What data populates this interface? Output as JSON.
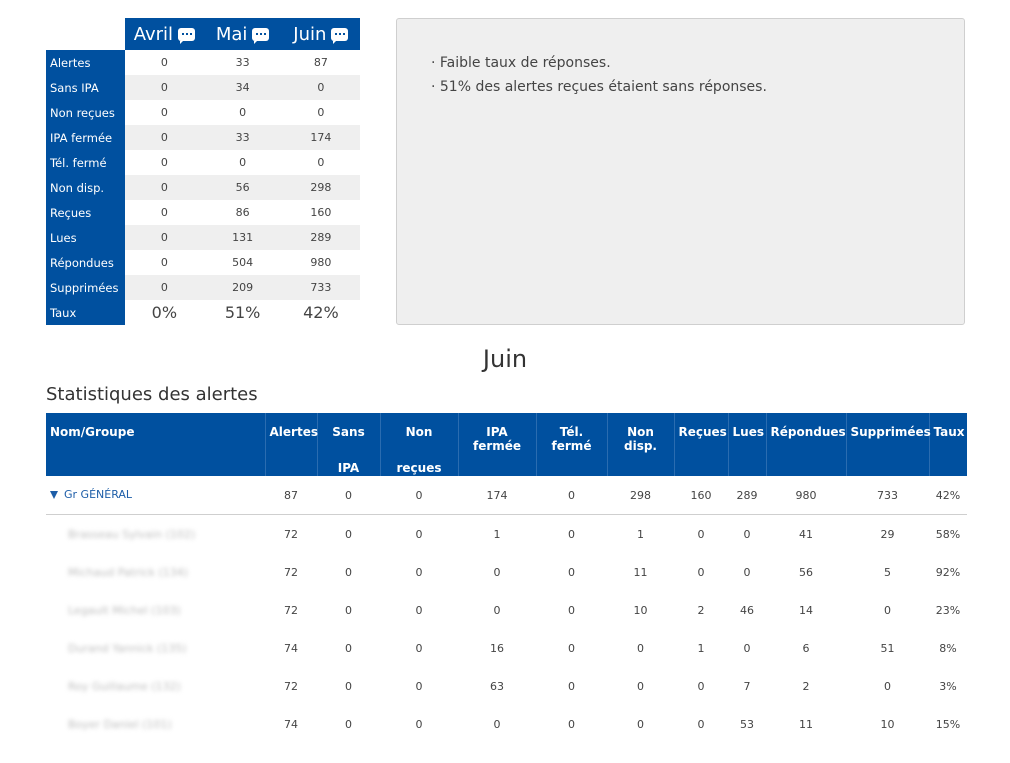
{
  "summary": {
    "months": [
      "Avril",
      "Mai",
      "Juin"
    ],
    "rows": [
      {
        "label": "Alertes",
        "values": [
          "0",
          "33",
          "87"
        ]
      },
      {
        "label": "Sans IPA",
        "values": [
          "0",
          "34",
          "0"
        ]
      },
      {
        "label": "Non reçues",
        "values": [
          "0",
          "0",
          "0"
        ]
      },
      {
        "label": "IPA fermée",
        "values": [
          "0",
          "33",
          "174"
        ]
      },
      {
        "label": "Tél. fermé",
        "values": [
          "0",
          "0",
          "0"
        ]
      },
      {
        "label": "Non disp.",
        "values": [
          "0",
          "56",
          "298"
        ]
      },
      {
        "label": "Reçues",
        "values": [
          "0",
          "86",
          "160"
        ]
      },
      {
        "label": "Lues",
        "values": [
          "0",
          "131",
          "289"
        ]
      },
      {
        "label": "Répondues",
        "values": [
          "0",
          "504",
          "980"
        ]
      },
      {
        "label": "Supprimées",
        "values": [
          "0",
          "209",
          "733"
        ]
      },
      {
        "label": "Taux",
        "values": [
          "0%",
          "51%",
          "42%"
        ]
      }
    ]
  },
  "comments": [
    "· Faible taux de réponses.",
    "· 51% des alertes reçues étaient sans réponses."
  ],
  "month_title": "Juin",
  "section_title": "Statistiques des alertes",
  "stats": {
    "headers": [
      "Nom/Groupe",
      "Alertes",
      "Sans IPA",
      "Non reçues",
      "IPA fermée",
      "Tél. fermé",
      "Non disp.",
      "Reçues",
      "Lues",
      "Répondues",
      "Supprimées",
      "Taux"
    ],
    "header_lines": {
      "sans_ipa": [
        "Sans",
        "IPA"
      ],
      "non_recues": [
        "Non",
        "reçues"
      ]
    },
    "group": {
      "name": "Gr GÉNÉRAL",
      "values": [
        "87",
        "0",
        "0",
        "174",
        "0",
        "298",
        "160",
        "289",
        "980",
        "733",
        "42%"
      ]
    },
    "rows": [
      {
        "name": "Brasseau Sylvain (102)",
        "values": [
          "72",
          "0",
          "0",
          "1",
          "0",
          "1",
          "0",
          "0",
          "41",
          "29",
          "58%"
        ]
      },
      {
        "name": "Michaud Patrick (134)",
        "values": [
          "72",
          "0",
          "0",
          "0",
          "0",
          "11",
          "0",
          "0",
          "56",
          "5",
          "92%"
        ]
      },
      {
        "name": "Legault Michel (103)",
        "values": [
          "72",
          "0",
          "0",
          "0",
          "0",
          "10",
          "2",
          "46",
          "14",
          "0",
          "23%"
        ]
      },
      {
        "name": "Durand Yannick (135)",
        "values": [
          "74",
          "0",
          "0",
          "16",
          "0",
          "0",
          "1",
          "0",
          "6",
          "51",
          "8%"
        ]
      },
      {
        "name": "Roy Guillaume (132)",
        "values": [
          "72",
          "0",
          "0",
          "63",
          "0",
          "0",
          "0",
          "7",
          "2",
          "0",
          "3%"
        ]
      },
      {
        "name": "Boyer Daniel (101)",
        "values": [
          "74",
          "0",
          "0",
          "0",
          "0",
          "0",
          "0",
          "53",
          "11",
          "10",
          "15%"
        ]
      }
    ]
  }
}
